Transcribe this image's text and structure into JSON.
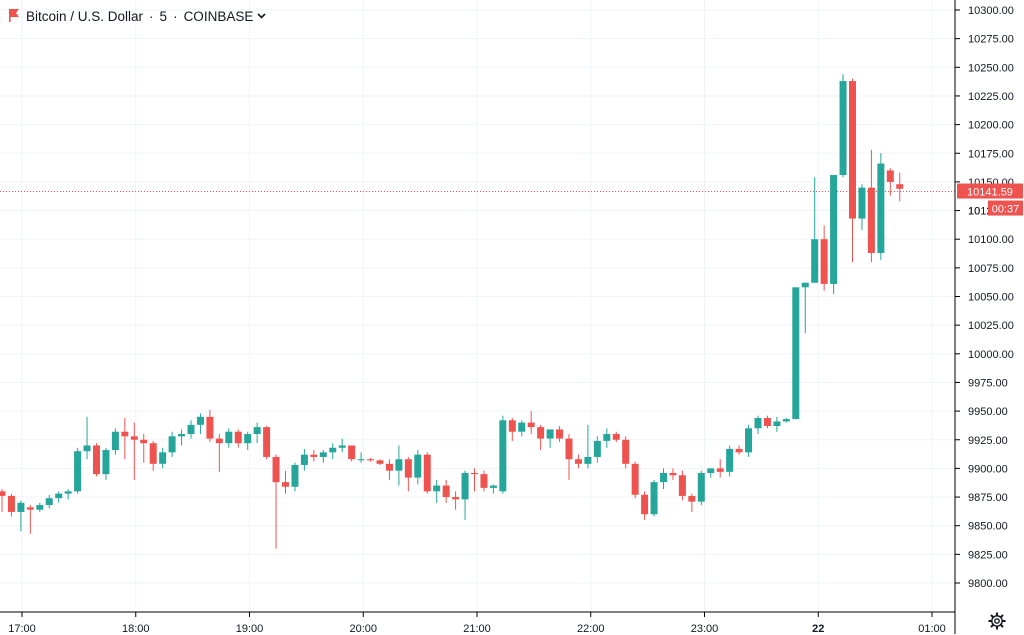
{
  "header": {
    "symbol": "Bitcoin / U.S. Dollar",
    "interval": "5",
    "exchange": "COINBASE",
    "flag_icon": "flag-icon",
    "dropdown_icon": "chevron-down-icon"
  },
  "price_tag": {
    "price": "10141.59",
    "countdown": "00:37",
    "partial_label": "10"
  },
  "settings_icon": "gear-icon",
  "colors": {
    "up": "#26a69a",
    "down": "#ef5350",
    "grid": "#f0f3fa",
    "axis": "#000000",
    "text": "#131722",
    "price_line": "#ef5350"
  },
  "chart_data": {
    "type": "candlestick",
    "y_ticks": [
      "9800.00",
      "9825.00",
      "9850.00",
      "9875.00",
      "9900.00",
      "9925.00",
      "9950.00",
      "9975.00",
      "10000.00",
      "10025.00",
      "10050.00",
      "10075.00",
      "10100.00",
      "10125.00",
      "10150.00",
      "10175.00",
      "10200.00",
      "10225.00",
      "10250.00",
      "10275.00",
      "10300.00"
    ],
    "ylim": [
      9780,
      10310
    ],
    "x_ticks": [
      "17:00",
      "18:00",
      "19:00",
      "20:00",
      "21:00",
      "22:00",
      "23:00",
      "22",
      "01:00"
    ],
    "x_tick_bold": "22",
    "current_price": 10141.59,
    "candles": [
      [
        9880,
        9882,
        9862,
        9876
      ],
      [
        9876,
        9878,
        9858,
        9862
      ],
      [
        9862,
        9872,
        9845,
        9870
      ],
      [
        9866,
        9868,
        9843,
        9864
      ],
      [
        9864,
        9870,
        9862,
        9868
      ],
      [
        9868,
        9877,
        9865,
        9874
      ],
      [
        9874,
        9880,
        9870,
        9878
      ],
      [
        9878,
        9882,
        9873,
        9880
      ],
      [
        9880,
        9918,
        9878,
        9915
      ],
      [
        9915,
        9945,
        9908,
        9920
      ],
      [
        9920,
        9922,
        9893,
        9895
      ],
      [
        9895,
        9918,
        9890,
        9916
      ],
      [
        9916,
        9935,
        9912,
        9932
      ],
      [
        9932,
        9944,
        9908,
        9928
      ],
      [
        9928,
        9940,
        9890,
        9925
      ],
      [
        9925,
        9930,
        9905,
        9922
      ],
      [
        9922,
        9924,
        9898,
        9904
      ],
      [
        9904,
        9918,
        9900,
        9914
      ],
      [
        9914,
        9932,
        9910,
        9928
      ],
      [
        9928,
        9934,
        9920,
        9930
      ],
      [
        9930,
        9942,
        9926,
        9938
      ],
      [
        9938,
        9948,
        9930,
        9945
      ],
      [
        9945,
        9951,
        9923,
        9926
      ],
      [
        9926,
        9930,
        9897,
        9922
      ],
      [
        9922,
        9935,
        9918,
        9932
      ],
      [
        9932,
        9934,
        9918,
        9922
      ],
      [
        9922,
        9932,
        9916,
        9930
      ],
      [
        9930,
        9940,
        9922,
        9936
      ],
      [
        9936,
        9937,
        9908,
        9910
      ],
      [
        9910,
        9912,
        9830,
        9888
      ],
      [
        9888,
        9898,
        9878,
        9884
      ],
      [
        9884,
        9905,
        9880,
        9903
      ],
      [
        9903,
        9917,
        9898,
        9912
      ],
      [
        9912,
        9916,
        9906,
        9910
      ],
      [
        9910,
        9916,
        9905,
        9914
      ],
      [
        9914,
        9922,
        9908,
        9918
      ],
      [
        9918,
        9926,
        9914,
        9920
      ],
      [
        9920,
        9920,
        9906,
        9908
      ],
      [
        9908,
        9914,
        9905,
        9908
      ],
      [
        9908,
        9909,
        9906,
        9907
      ],
      [
        9907,
        9908,
        9903,
        9904
      ],
      [
        9904,
        9908,
        9890,
        9898
      ],
      [
        9898,
        9920,
        9885,
        9908
      ],
      [
        9908,
        9910,
        9880,
        9892
      ],
      [
        9892,
        9916,
        9886,
        9912
      ],
      [
        9912,
        9914,
        9878,
        9880
      ],
      [
        9880,
        9890,
        9870,
        9885
      ],
      [
        9885,
        9890,
        9870,
        9875
      ],
      [
        9875,
        9880,
        9864,
        9873
      ],
      [
        9873,
        9898,
        9855,
        9896
      ],
      [
        9896,
        9900,
        9880,
        9895
      ],
      [
        9895,
        9898,
        9880,
        9883
      ],
      [
        9883,
        9886,
        9878,
        9885
      ],
      [
        9880,
        9946,
        9878,
        9942
      ],
      [
        9942,
        9944,
        9924,
        9932
      ],
      [
        9932,
        9942,
        9928,
        9940
      ],
      [
        9940,
        9950,
        9930,
        9936
      ],
      [
        9936,
        9938,
        9916,
        9926
      ],
      [
        9926,
        9934,
        9918,
        9934
      ],
      [
        9934,
        9937,
        9923,
        9926
      ],
      [
        9926,
        9930,
        9890,
        9908
      ],
      [
        9908,
        9912,
        9900,
        9904
      ],
      [
        9904,
        9938,
        9900,
        9910
      ],
      [
        9910,
        9928,
        9905,
        9924
      ],
      [
        9924,
        9935,
        9918,
        9930
      ],
      [
        9930,
        9932,
        9923,
        9925
      ],
      [
        9925,
        9928,
        9900,
        9904
      ],
      [
        9904,
        9906,
        9874,
        9877
      ],
      [
        9877,
        9880,
        9855,
        9860
      ],
      [
        9860,
        9890,
        9858,
        9888
      ],
      [
        9888,
        9900,
        9882,
        9896
      ],
      [
        9896,
        9900,
        9890,
        9894
      ],
      [
        9894,
        9898,
        9872,
        9876
      ],
      [
        9876,
        9878,
        9862,
        9871
      ],
      [
        9871,
        9898,
        9868,
        9896
      ],
      [
        9896,
        9900,
        9892,
        9900
      ],
      [
        9900,
        9908,
        9892,
        9897
      ],
      [
        9897,
        9920,
        9893,
        9917
      ],
      [
        9917,
        9920,
        9912,
        9914
      ],
      [
        9914,
        9938,
        9910,
        9935
      ],
      [
        9935,
        9946,
        9930,
        9944
      ],
      [
        9944,
        9946,
        9935,
        9937
      ],
      [
        9937,
        9945,
        9932,
        9941
      ],
      [
        9941,
        9944,
        9940,
        9943
      ],
      [
        9943,
        10058,
        9943,
        10058
      ],
      [
        10058,
        10062,
        10018,
        10062
      ],
      [
        10062,
        10154,
        10062,
        10100
      ],
      [
        10100,
        10112,
        10055,
        10061
      ],
      [
        10061,
        10155,
        10052,
        10156
      ],
      [
        10156,
        10244,
        10154,
        10238
      ],
      [
        10238,
        10240,
        10080,
        10118
      ],
      [
        10118,
        10148,
        10108,
        10145
      ],
      [
        10145,
        10178,
        10080,
        10088
      ],
      [
        10088,
        10175,
        10082,
        10166
      ],
      [
        10160,
        10162,
        10138,
        10150
      ],
      [
        10148,
        10158,
        10133,
        10144
      ]
    ]
  }
}
